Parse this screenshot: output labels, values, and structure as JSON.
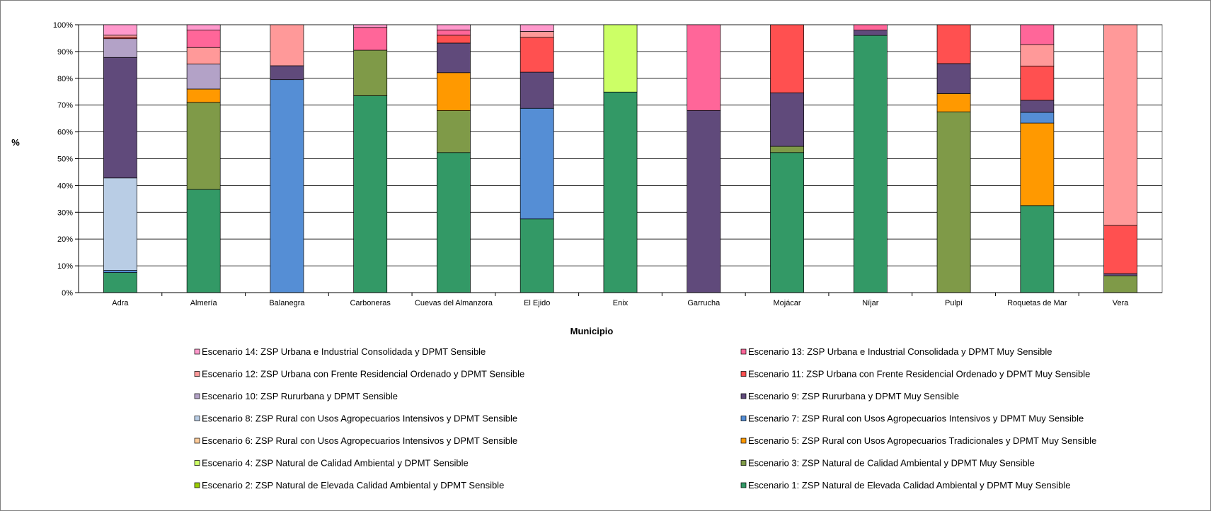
{
  "chart_data": {
    "type": "bar",
    "stacked": true,
    "percent": true,
    "title": "",
    "xlabel": "Municipio",
    "ylabel": "%",
    "ylim": [
      0,
      100
    ],
    "y_ticks": [
      "0%",
      "10%",
      "20%",
      "30%",
      "40%",
      "50%",
      "60%",
      "70%",
      "80%",
      "90%",
      "100%"
    ],
    "grid": true,
    "legend_position": "bottom",
    "categories": [
      "Adra",
      "Almería",
      "Balanegra",
      "Carboneras",
      "Cuevas del Almanzora",
      "El Ejido",
      "Enix",
      "Garrucha",
      "Mojácar",
      "Níjar",
      "Pulpí",
      "Roquetas de Mar",
      "Vera"
    ],
    "series": [
      {
        "name": "Escenario 1: ZSP Natural de Elevada Calidad Ambiental y DPMT Muy Sensible",
        "color": "#339966",
        "values": [
          7.5,
          38.5,
          0,
          73.5,
          53.5,
          27.5,
          74.5,
          0,
          52.3,
          96.0,
          0,
          32.5,
          0
        ]
      },
      {
        "name": "Escenario 2: ZSP Natural de Elevada Calidad Ambiental y DPMT Sensible",
        "color": "#99cc00",
        "values": [
          0,
          0,
          0,
          0,
          0,
          0,
          0,
          0,
          0,
          0,
          0,
          0,
          0
        ]
      },
      {
        "name": "Escenario 3: ZSP Natural de Calidad Ambiental y DPMT Muy Sensible",
        "color": "#7f9a48",
        "values": [
          0,
          32.5,
          0,
          17.0,
          16.0,
          0,
          0,
          0,
          2.3,
          0,
          67.5,
          0,
          6.3
        ]
      },
      {
        "name": "Escenario 4: ZSP Natural de Calidad Ambiental y DPMT Sensible",
        "color": "#ccff66",
        "values": [
          0,
          0,
          0,
          0,
          0,
          0,
          25.0,
          0,
          0,
          0,
          0,
          0,
          0
        ]
      },
      {
        "name": "Escenario 5: ZSP Rural con Usos Agropecuarios Tradicionales y DPMT Muy Sensible",
        "color": "#ff9900",
        "values": [
          0,
          5.0,
          0,
          0,
          14.5,
          0,
          0,
          0,
          0,
          0,
          6.8,
          30.8,
          0
        ]
      },
      {
        "name": "Escenario 6: ZSP Rural con Usos Agropecuarios Intensivos y DPMT Sensible",
        "color": "#ffcc99",
        "values": [
          0,
          0,
          0,
          0,
          0,
          0,
          0,
          0,
          0,
          0,
          0,
          0,
          0
        ]
      },
      {
        "name": "Escenario 7: ZSP Rural con Usos Agropecuarios Intensivos y DPMT Muy Sensible",
        "color": "#558ed5",
        "values": [
          0.8,
          0,
          79.5,
          0,
          0,
          41.3,
          0,
          0,
          0,
          0,
          0,
          4.0,
          0
        ]
      },
      {
        "name": "Escenario 8: ZSP Rural con Usos Agropecuarios Intensivos y DPMT Sensible",
        "color": "#b9cde5",
        "values": [
          34.5,
          0,
          0,
          0,
          0,
          0,
          0,
          0,
          0,
          0,
          0,
          0,
          0
        ]
      },
      {
        "name": "Escenario 9: ZSP Rururbana y DPMT Muy Sensible",
        "color": "#604a7b",
        "values": [
          45.0,
          0,
          5.2,
          0,
          11.3,
          13.5,
          0,
          68.0,
          20.0,
          2.0,
          11.2,
          4.5,
          0.8
        ]
      },
      {
        "name": "Escenario 10: ZSP Rururbana y DPMT Sensible",
        "color": "#b3a2c7",
        "values": [
          7.0,
          9.3,
          0,
          0,
          0,
          0,
          0,
          0,
          0,
          0,
          0,
          0,
          0
        ]
      },
      {
        "name": "Escenario 11: ZSP Urbana con Frente Residencial Ordenado y DPMT Muy Sensible",
        "color": "#ff5050",
        "values": [
          0.5,
          0,
          0,
          0,
          3.0,
          13.0,
          0,
          0,
          25.4,
          0,
          14.5,
          12.8,
          18.0
        ]
      },
      {
        "name": "Escenario 12: ZSP Urbana con Frente Residencial Ordenado y DPMT Sensible",
        "color": "#ff9999",
        "values": [
          0.8,
          6.2,
          15.3,
          0,
          0,
          2.2,
          0,
          0,
          0,
          0,
          0,
          8.0,
          74.9
        ]
      },
      {
        "name": "Escenario 13: ZSP Urbana e Industrial Consolidada y DPMT Muy Sensible",
        "color": "#ff6699",
        "values": [
          0,
          6.5,
          0,
          8.5,
          2.0,
          0,
          0,
          32.0,
          0,
          2.0,
          0,
          7.4,
          0
        ]
      },
      {
        "name": "Escenario 14: ZSP Urbana e Industrial Consolidada y DPMT Sensible",
        "color": "#ff99cc",
        "values": [
          3.9,
          2.0,
          0,
          1.0,
          2.0,
          2.5,
          0,
          0,
          0,
          0,
          0,
          0,
          0
        ]
      }
    ],
    "legend_order": [
      13,
      12,
      11,
      10,
      9,
      8,
      7,
      6,
      5,
      4,
      3,
      2,
      1,
      0
    ]
  }
}
